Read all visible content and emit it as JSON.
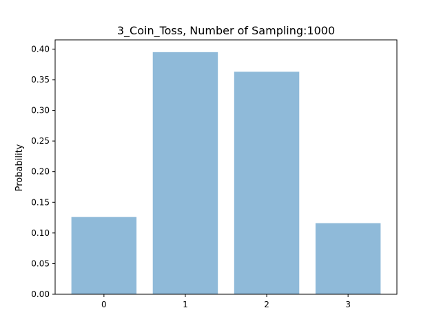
{
  "chart_data": {
    "type": "bar",
    "title": "3_Coin_Toss, Number of Sampling:1000",
    "xlabel": "",
    "ylabel": "Probability",
    "categories": [
      "0",
      "1",
      "2",
      "3"
    ],
    "values": [
      0.126,
      0.395,
      0.363,
      0.116
    ],
    "ylim": [
      0,
      0.415
    ],
    "yticks": [
      "0.00",
      "0.05",
      "0.10",
      "0.15",
      "0.20",
      "0.25",
      "0.30",
      "0.35",
      "0.40"
    ],
    "bar_color": "#8fbad9",
    "grid": false,
    "legend": "none"
  }
}
